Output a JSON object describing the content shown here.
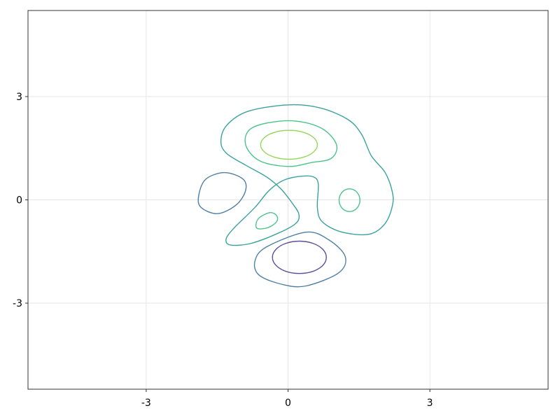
{
  "chart_data": {
    "type": "contour",
    "title": "",
    "xlabel": "",
    "ylabel": "",
    "xlim": [
      -5.5,
      5.5
    ],
    "ylim": [
      -5.5,
      5.5
    ],
    "grid": true,
    "xticks": [
      {
        "value": -3,
        "label": "-3"
      },
      {
        "value": 0,
        "label": "0"
      },
      {
        "value": 3,
        "label": "3"
      }
    ],
    "yticks": [
      {
        "value": -3,
        "label": "-3"
      },
      {
        "value": 0,
        "label": "0"
      },
      {
        "value": 3,
        "label": "3"
      }
    ],
    "colors": {
      "grid": "#e6e6e6",
      "axis": "#333333"
    },
    "contours": [
      {
        "level_rank": 1,
        "color": "#5b4f99",
        "ellipse": {
          "cx": 0.24,
          "cy": -1.67,
          "rx": 0.57,
          "ry": 0.47
        }
      },
      {
        "level_rank": 2,
        "color": "#4f7fa3",
        "points": [
          [
            -0.7,
            -1.78
          ],
          [
            -0.46,
            -1.37
          ],
          [
            0.38,
            -0.94
          ],
          [
            0.87,
            -1.17
          ],
          [
            1.21,
            -1.65
          ],
          [
            1.07,
            -2.12
          ],
          [
            0.38,
            -2.5
          ],
          [
            -0.11,
            -2.46
          ],
          [
            -0.61,
            -2.19
          ]
        ]
      },
      {
        "level_rank": 2,
        "color": "#4f7fa3",
        "points": [
          [
            -1.89,
            0.12
          ],
          [
            -1.74,
            0.6
          ],
          [
            -1.34,
            0.79
          ],
          [
            -0.95,
            0.6
          ],
          [
            -0.9,
            0.26
          ],
          [
            -1.1,
            -0.15
          ],
          [
            -1.49,
            -0.4
          ],
          [
            -1.84,
            -0.22
          ]
        ]
      },
      {
        "level_rank": 3,
        "color": "#3aa29d",
        "points": [
          [
            -1.42,
            1.69
          ],
          [
            -1.3,
            2.16
          ],
          [
            -0.85,
            2.57
          ],
          [
            0.01,
            2.76
          ],
          [
            0.68,
            2.67
          ],
          [
            1.27,
            2.33
          ],
          [
            1.56,
            1.89
          ],
          [
            1.76,
            1.28
          ],
          [
            2.05,
            0.8
          ],
          [
            2.2,
            0.26
          ],
          [
            2.21,
            -0.15
          ],
          [
            2.05,
            -0.69
          ],
          [
            1.71,
            -1.0
          ],
          [
            1.12,
            -0.93
          ],
          [
            0.72,
            -0.63
          ],
          [
            0.62,
            -0.22
          ],
          [
            0.64,
            0.46
          ],
          [
            0.53,
            0.67
          ],
          [
            0.23,
            0.68
          ],
          [
            -0.11,
            0.56
          ],
          [
            -0.41,
            0.26
          ],
          [
            -0.7,
            -0.22
          ],
          [
            -1.15,
            -0.83
          ],
          [
            -1.31,
            -1.14
          ],
          [
            -1.22,
            -1.31
          ],
          [
            -0.8,
            -1.27
          ],
          [
            -0.21,
            -0.97
          ],
          [
            0.16,
            -0.69
          ],
          [
            0.23,
            -0.42
          ],
          [
            0.08,
            -0.08
          ],
          [
            -0.16,
            0.33
          ],
          [
            -0.46,
            0.67
          ],
          [
            -0.9,
            1.01
          ],
          [
            -1.3,
            1.35
          ]
        ]
      },
      {
        "level_rank": 4,
        "color": "#4cc38c",
        "points": [
          [
            -0.9,
            1.62
          ],
          [
            -0.75,
            2.1
          ],
          [
            0.01,
            2.3
          ],
          [
            0.68,
            2.1
          ],
          [
            1.02,
            1.62
          ],
          [
            0.92,
            1.21
          ],
          [
            0.48,
            1.08
          ],
          [
            -0.01,
            0.97
          ],
          [
            -0.61,
            1.14
          ]
        ]
      },
      {
        "level_rank": 4,
        "color": "#4cc38c",
        "ellipse": {
          "cx": 1.3,
          "cy": -0.01,
          "rx": 0.22,
          "ry": 0.33
        }
      },
      {
        "level_rank": 4,
        "color": "#4cc38c",
        "points": [
          [
            -0.68,
            -0.73
          ],
          [
            -0.61,
            -0.52
          ],
          [
            -0.38,
            -0.37
          ],
          [
            -0.24,
            -0.46
          ],
          [
            -0.24,
            -0.63
          ],
          [
            -0.41,
            -0.8
          ],
          [
            -0.63,
            -0.84
          ]
        ]
      },
      {
        "level_rank": 5,
        "color": "#93d65a",
        "ellipse": {
          "cx": 0.02,
          "cy": 1.6,
          "rx": 0.6,
          "ry": 0.42
        }
      }
    ]
  }
}
